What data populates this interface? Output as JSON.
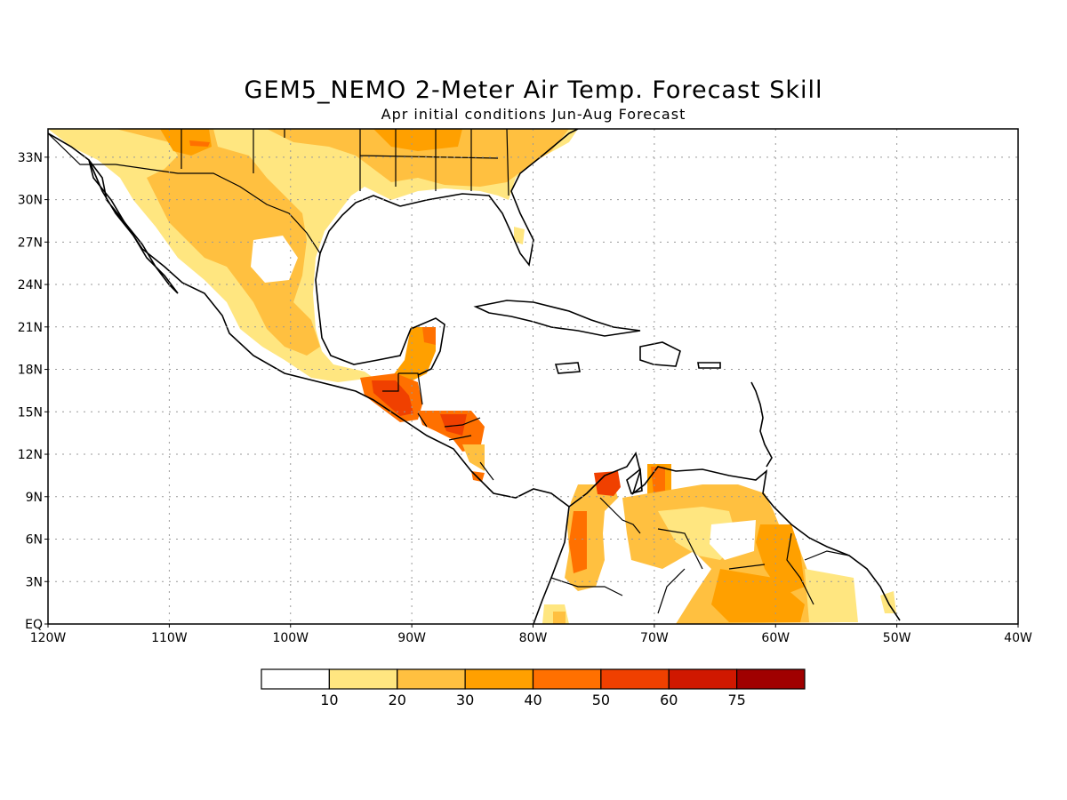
{
  "title": "GEM5_NEMO 2-Meter Air Temp. Forecast Skill",
  "subtitle": "Apr initial conditions  Jun-Aug Forecast",
  "map": {
    "lon_range": [
      -120,
      -40
    ],
    "lat_range": [
      0,
      35
    ],
    "lon_ticks": [
      {
        "value": -120,
        "label": "120W"
      },
      {
        "value": -110,
        "label": "110W"
      },
      {
        "value": -100,
        "label": "100W"
      },
      {
        "value": -90,
        "label": "90W"
      },
      {
        "value": -80,
        "label": "80W"
      },
      {
        "value": -70,
        "label": "70W"
      },
      {
        "value": -60,
        "label": "60W"
      },
      {
        "value": -50,
        "label": "50W"
      },
      {
        "value": -40,
        "label": "40W"
      }
    ],
    "lat_ticks": [
      {
        "value": 0,
        "label": "EQ"
      },
      {
        "value": 3,
        "label": "3N"
      },
      {
        "value": 6,
        "label": "6N"
      },
      {
        "value": 9,
        "label": "9N"
      },
      {
        "value": 12,
        "label": "12N"
      },
      {
        "value": 15,
        "label": "15N"
      },
      {
        "value": 18,
        "label": "18N"
      },
      {
        "value": 21,
        "label": "21N"
      },
      {
        "value": 24,
        "label": "24N"
      },
      {
        "value": 27,
        "label": "27N"
      },
      {
        "value": 30,
        "label": "30N"
      },
      {
        "value": 33,
        "label": "33N"
      }
    ],
    "grid": true
  },
  "colorbar": {
    "colors": [
      "#ffffff",
      "#ffe680",
      "#ffc040",
      "#ffa000",
      "#ff7000",
      "#f04000",
      "#d01800",
      "#a00000"
    ],
    "labels": [
      "10",
      "20",
      "30",
      "40",
      "50",
      "60",
      "75"
    ]
  },
  "chart_data": {
    "type": "heatmap",
    "title": "GEM5_NEMO 2-Meter Air Temp. Forecast Skill",
    "subtitle": "Apr initial conditions  Jun-Aug Forecast",
    "levels": [
      10,
      20,
      30,
      40,
      50,
      60,
      75
    ],
    "regions": [
      {
        "lon": -108,
        "lat": 33.5,
        "level": 40
      },
      {
        "lon": -101,
        "lat": 31,
        "level": 20
      },
      {
        "lon": -106,
        "lat": 27,
        "level": 30
      },
      {
        "lon": -86,
        "lat": 33,
        "level": 30
      },
      {
        "lon": -91.5,
        "lat": 16,
        "level": 50
      },
      {
        "lon": -86.5,
        "lat": 14.5,
        "level": 50
      },
      {
        "lon": -89.5,
        "lat": 20,
        "level": 30
      },
      {
        "lon": -74,
        "lat": 10.5,
        "level": 50
      },
      {
        "lon": -70,
        "lat": 10.5,
        "level": 40
      },
      {
        "lon": -76.5,
        "lat": 5,
        "level": 40
      },
      {
        "lon": -62,
        "lat": 2,
        "level": 30
      },
      {
        "lon": -66,
        "lat": 6,
        "level": 20
      }
    ]
  }
}
